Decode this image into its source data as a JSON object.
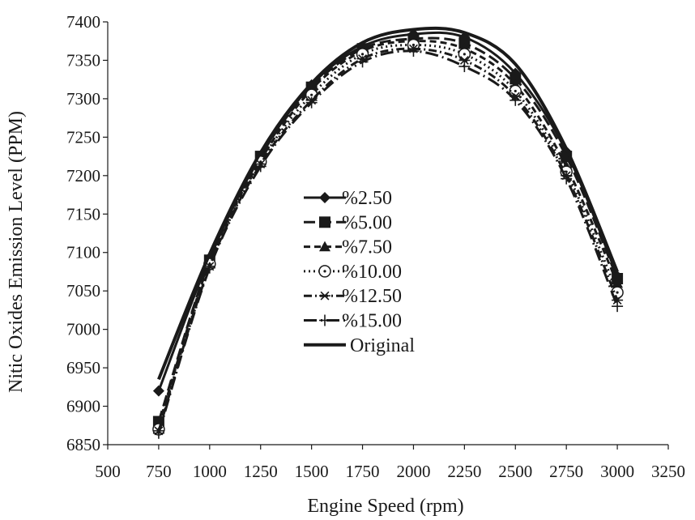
{
  "chart_data": {
    "type": "line",
    "xlabel": "Engine Speed (rpm)",
    "ylabel": "Nitic Oxides Emission Level (PPM)",
    "xlim": [
      500,
      3250
    ],
    "ylim": [
      6850,
      7400
    ],
    "xticks": [
      500,
      750,
      1000,
      1250,
      1500,
      1750,
      2000,
      2250,
      2500,
      2750,
      3000,
      3250
    ],
    "yticks": [
      6850,
      6900,
      6950,
      7000,
      7050,
      7100,
      7150,
      7200,
      7250,
      7300,
      7350,
      7400
    ],
    "x": [
      750,
      1000,
      1250,
      1500,
      1750,
      2000,
      2250,
      2500,
      2750,
      3000
    ],
    "grid": false,
    "legend_position": "center-left",
    "series": [
      {
        "name": "%2.50",
        "marker": "diamond",
        "dash": "solid",
        "values": [
          6920,
          7093,
          7226,
          7318,
          7368,
          7384,
          7380,
          7333,
          7231,
          7069
        ]
      },
      {
        "name": "%5.00",
        "marker": "square",
        "dash": "long-dash",
        "values": [
          6880,
          7090,
          7225,
          7315,
          7365,
          7378,
          7372,
          7326,
          7225,
          7066
        ]
      },
      {
        "name": "%7.50",
        "marker": "triangle",
        "dash": "dash",
        "values": [
          6875,
          7088,
          7220,
          7312,
          7362,
          7375,
          7365,
          7318,
          7212,
          7060
        ]
      },
      {
        "name": "%10.00",
        "marker": "circle",
        "dash": "dot",
        "values": [
          6870,
          7085,
          7218,
          7305,
          7358,
          7370,
          7358,
          7310,
          7205,
          7048
        ]
      },
      {
        "name": "%12.50",
        "marker": "asterisk",
        "dash": "dash-dot",
        "values": [
          6868,
          7082,
          7215,
          7298,
          7352,
          7365,
          7350,
          7303,
          7200,
          7038
        ]
      },
      {
        "name": "%15.00",
        "marker": "plus",
        "dash": "long-dash-dot",
        "values": [
          6865,
          7080,
          7212,
          7295,
          7348,
          7362,
          7342,
          7298,
          7196,
          7030
        ]
      },
      {
        "name": "Original",
        "marker": "none",
        "dash": "solid",
        "values": [
          6935,
          7098,
          7230,
          7320,
          7373,
          7390,
          7386,
          7345,
          7235,
          7075
        ]
      }
    ]
  }
}
